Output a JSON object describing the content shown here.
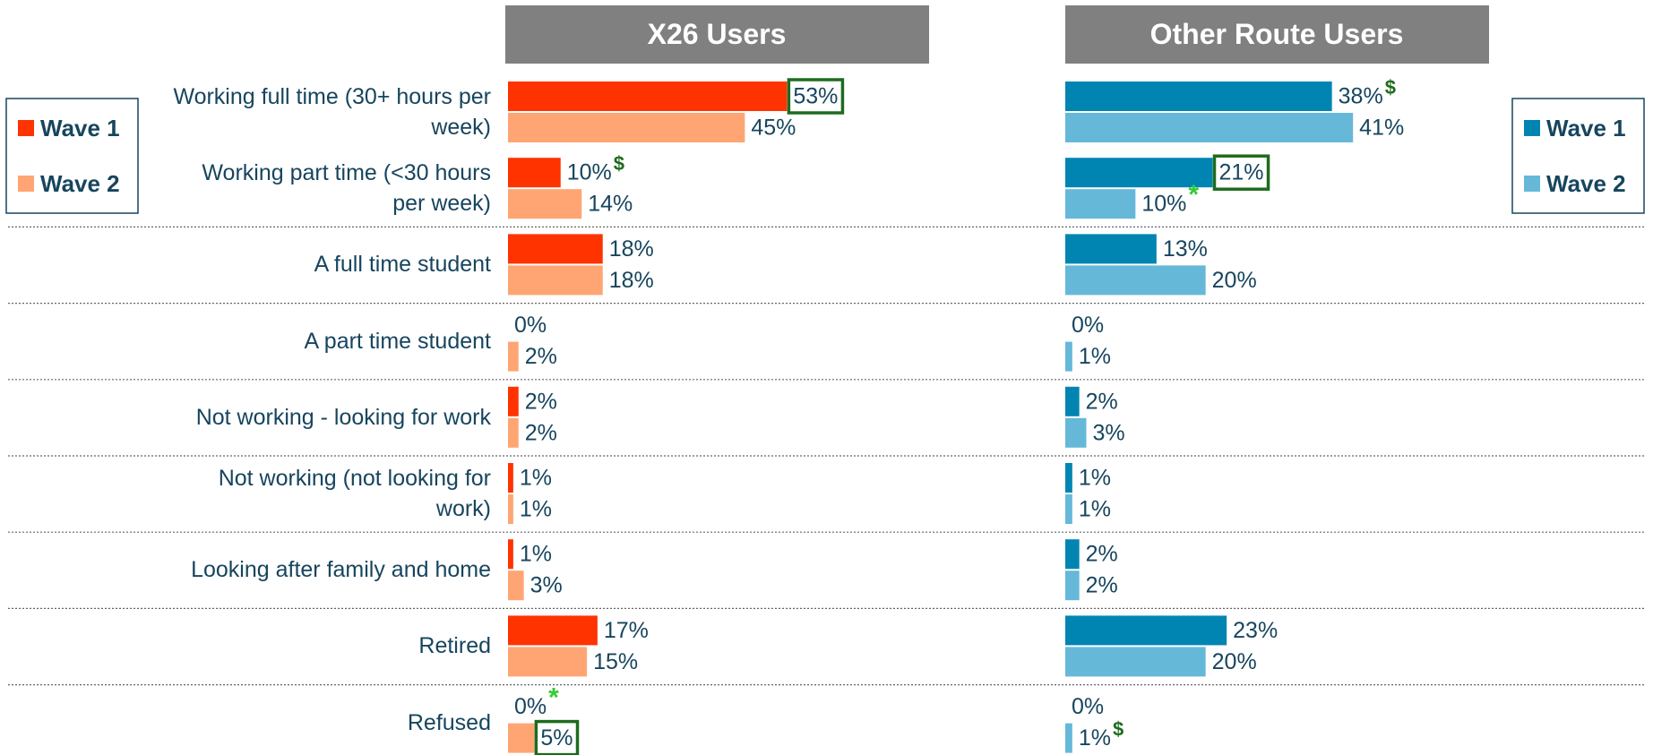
{
  "chart_data": [
    {
      "type": "bar",
      "title": "X26 Users",
      "categories": [
        "Working full time (30+ hours per week)",
        "Working part time (<30 hours per week)",
        "A full time student",
        "A part time student",
        "Not working - looking for work",
        "Not working (not looking for work)",
        "Looking after family and home",
        "Retired",
        "Refused"
      ],
      "xlim": [
        0,
        80
      ],
      "legend": "left",
      "series": [
        {
          "name": "Wave 1",
          "color": "#ff3300",
          "values": [
            53,
            10,
            18,
            0,
            2,
            1,
            1,
            17,
            0
          ],
          "value_labels": [
            "53%",
            "10%",
            "18%",
            "0%",
            "2%",
            "1%",
            "1%",
            "17%",
            "0%"
          ],
          "value_markers": [
            null,
            "$",
            null,
            null,
            null,
            null,
            null,
            null,
            "*"
          ],
          "highlight": [
            0
          ]
        },
        {
          "name": "Wave 2",
          "color": "#ffa573",
          "values": [
            45,
            14,
            18,
            2,
            2,
            1,
            3,
            15,
            5
          ],
          "value_labels": [
            "45%",
            "14%",
            "18%",
            "2%",
            "2%",
            "1%",
            "3%",
            "15%",
            "5%"
          ],
          "value_markers": [
            null,
            null,
            null,
            null,
            null,
            null,
            null,
            null,
            null
          ],
          "highlight": [
            8
          ]
        }
      ]
    },
    {
      "type": "bar",
      "title": "Other Route Users",
      "xlim": [
        0,
        60
      ],
      "legend": "right",
      "series": [
        {
          "name": "Wave 1",
          "color": "#0085b2",
          "values": [
            38,
            21,
            13,
            0,
            2,
            1,
            2,
            23,
            0
          ],
          "value_labels": [
            "38%",
            "21%",
            "13%",
            "0%",
            "2%",
            "1%",
            "2%",
            "23%",
            "0%"
          ],
          "value_markers": [
            "$",
            null,
            null,
            null,
            null,
            null,
            null,
            null,
            null
          ],
          "highlight": [
            1
          ]
        },
        {
          "name": "Wave 2",
          "color": "#66b8d9",
          "values": [
            41,
            10,
            20,
            1,
            3,
            1,
            2,
            20,
            1
          ],
          "value_labels": [
            "41%",
            "10%",
            "20%",
            "1%",
            "3%",
            "1%",
            "2%",
            "20%",
            "1%"
          ],
          "value_markers": [
            null,
            "*",
            null,
            null,
            null,
            null,
            null,
            null,
            "$"
          ],
          "highlight": []
        }
      ]
    }
  ]
}
